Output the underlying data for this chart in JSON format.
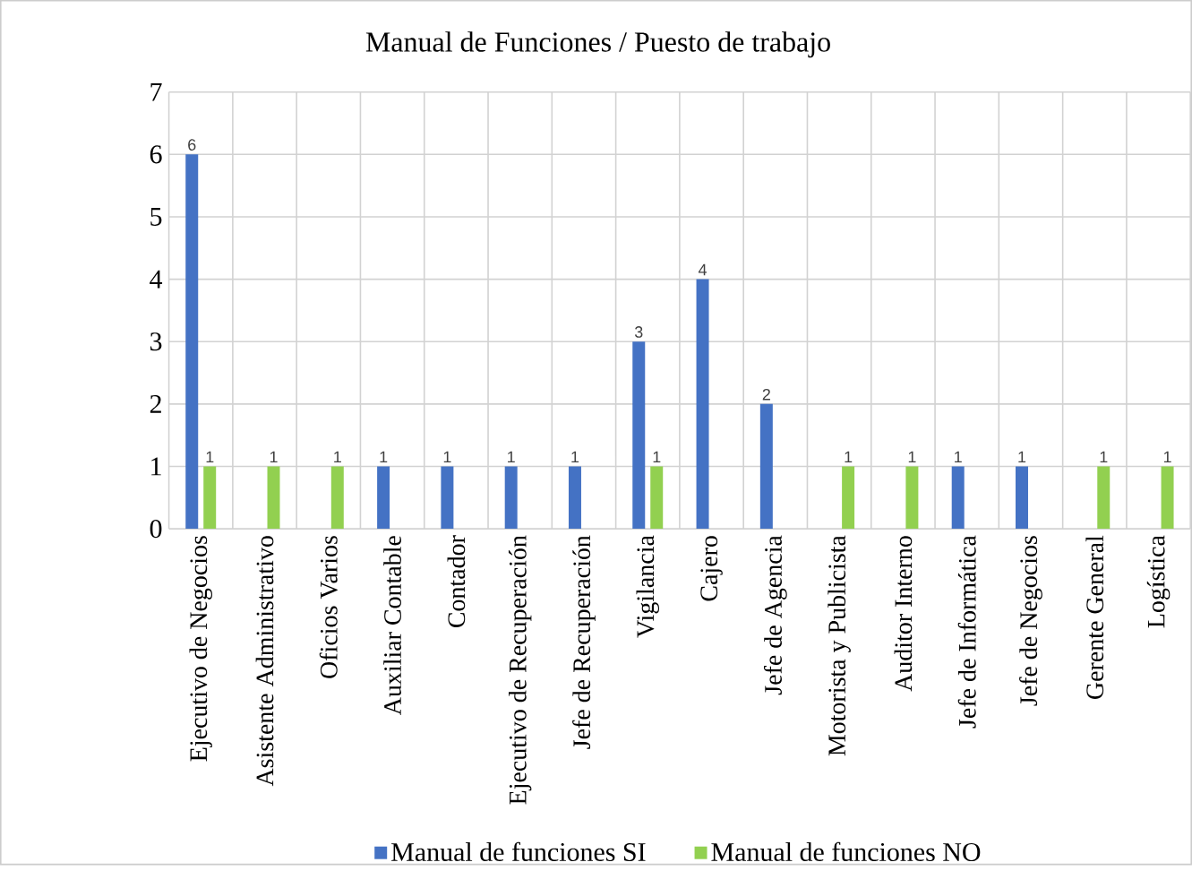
{
  "chart_data": {
    "type": "bar",
    "title": "Manual de Funciones / Puesto de trabajo",
    "categories": [
      "Ejecutivo de Negocios",
      "Asistente Administrativo",
      "Oficios Varios",
      "Auxiliar Contable",
      "Contador",
      "Ejecutivo de Recuperación",
      "Jefe de Recuperación",
      "Vigilancia",
      "Cajero",
      "Jefe de Agencia",
      "Motorista y Publicista",
      "Auditor Interno",
      "Jefe de Informática",
      "Jefe de Negocios",
      "Gerente General",
      "Logística"
    ],
    "series": [
      {
        "name": "Manual de funciones SI",
        "color": "#4472c4",
        "values": [
          6,
          null,
          null,
          1,
          1,
          1,
          1,
          3,
          4,
          2,
          null,
          null,
          1,
          1,
          null,
          null
        ]
      },
      {
        "name": "Manual de funciones NO",
        "color": "#92d050",
        "values": [
          1,
          1,
          1,
          null,
          null,
          null,
          null,
          1,
          null,
          null,
          1,
          1,
          null,
          null,
          1,
          1
        ]
      }
    ],
    "ylim": [
      0,
      7
    ],
    "yticks": [
      0,
      1,
      2,
      3,
      4,
      5,
      6,
      7
    ],
    "grid": true,
    "legend": "bottom",
    "data_labels": true
  }
}
